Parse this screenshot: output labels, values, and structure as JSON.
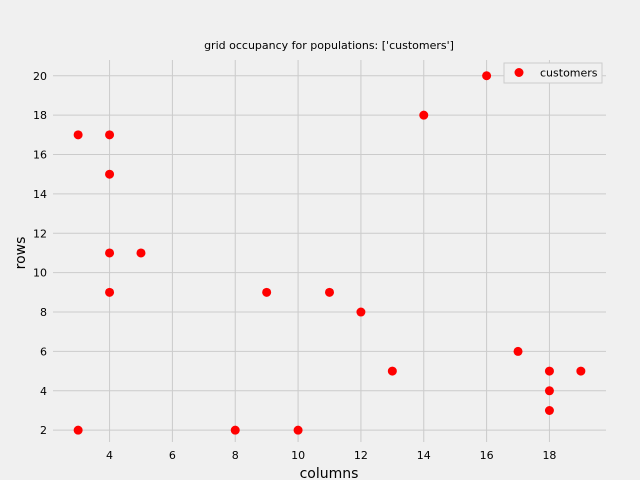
{
  "chart_data": {
    "type": "scatter",
    "title": "grid occupancy for populations: ['customers']",
    "xlabel": "columns",
    "ylabel": "rows",
    "xlim": [
      2.2,
      19.8
    ],
    "ylim": [
      1.4,
      20.8
    ],
    "xticks": [
      4,
      6,
      8,
      10,
      12,
      14,
      16,
      18
    ],
    "yticks": [
      2,
      4,
      6,
      8,
      10,
      12,
      14,
      16,
      18,
      20
    ],
    "grid": true,
    "legend_position": "top-right",
    "series": [
      {
        "name": "customers",
        "color": "#ff0000",
        "points": [
          {
            "x": 3,
            "y": 17
          },
          {
            "x": 4,
            "y": 17
          },
          {
            "x": 4,
            "y": 15
          },
          {
            "x": 4,
            "y": 11
          },
          {
            "x": 5,
            "y": 11
          },
          {
            "x": 4,
            "y": 9
          },
          {
            "x": 3,
            "y": 2
          },
          {
            "x": 8,
            "y": 2
          },
          {
            "x": 9,
            "y": 9
          },
          {
            "x": 10,
            "y": 2
          },
          {
            "x": 11,
            "y": 9
          },
          {
            "x": 12,
            "y": 8
          },
          {
            "x": 13,
            "y": 5
          },
          {
            "x": 14,
            "y": 18
          },
          {
            "x": 16,
            "y": 20
          },
          {
            "x": 17,
            "y": 6
          },
          {
            "x": 18,
            "y": 5
          },
          {
            "x": 18,
            "y": 4
          },
          {
            "x": 18,
            "y": 3
          },
          {
            "x": 19,
            "y": 5
          }
        ]
      }
    ]
  }
}
